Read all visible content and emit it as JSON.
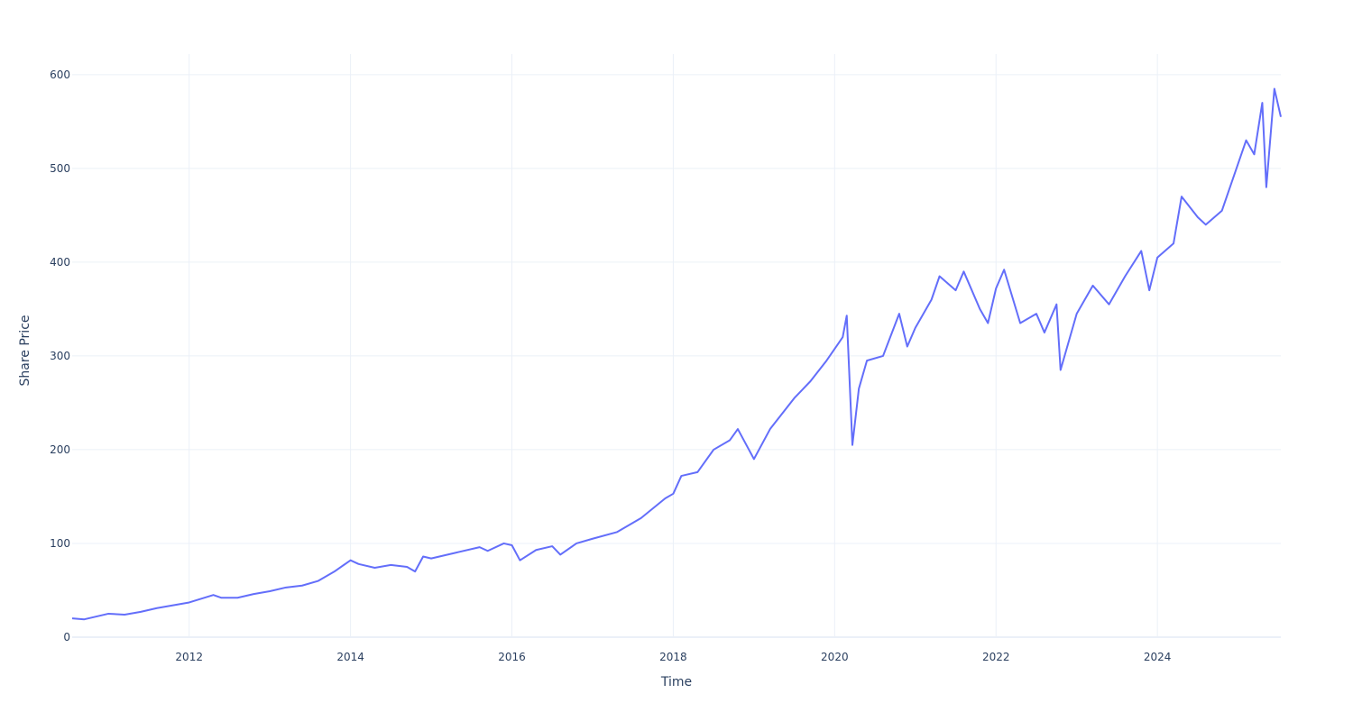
{
  "chart_data": {
    "type": "line",
    "title": "",
    "xlabel": "Time",
    "ylabel": "Share Price",
    "xlim": [
      2010.55,
      2025.53
    ],
    "ylim": [
      -1,
      622
    ],
    "x_ticks": [
      2012,
      2014,
      2016,
      2018,
      2020,
      2022,
      2024
    ],
    "x_tick_labels": [
      "2012",
      "2014",
      "2016",
      "2018",
      "2020",
      "2022",
      "2024"
    ],
    "y_ticks": [
      0,
      100,
      200,
      300,
      400,
      500,
      600
    ],
    "y_tick_labels": [
      "0",
      "100",
      "200",
      "300",
      "400",
      "500",
      "600"
    ],
    "grid": true,
    "legend": "none",
    "series": [
      {
        "color": "#636efa",
        "x": [
          2010.55,
          2010.7,
          2010.85,
          2011.0,
          2011.2,
          2011.4,
          2011.6,
          2011.8,
          2012.0,
          2012.15,
          2012.3,
          2012.4,
          2012.6,
          2012.8,
          2013.0,
          2013.2,
          2013.4,
          2013.6,
          2013.8,
          2014.0,
          2014.1,
          2014.3,
          2014.5,
          2014.7,
          2014.8,
          2014.9,
          2015.0,
          2015.3,
          2015.6,
          2015.7,
          2015.9,
          2016.0,
          2016.1,
          2016.3,
          2016.5,
          2016.6,
          2016.8,
          2017.0,
          2017.3,
          2017.6,
          2017.9,
          2018.0,
          2018.1,
          2018.3,
          2018.5,
          2018.7,
          2018.8,
          2019.0,
          2019.2,
          2019.5,
          2019.7,
          2019.9,
          2020.1,
          2020.15,
          2020.22,
          2020.3,
          2020.4,
          2020.6,
          2020.8,
          2020.9,
          2021.0,
          2021.2,
          2021.3,
          2021.5,
          2021.6,
          2021.8,
          2021.9,
          2022.0,
          2022.1,
          2022.3,
          2022.5,
          2022.6,
          2022.75,
          2022.8,
          2023.0,
          2023.2,
          2023.4,
          2023.6,
          2023.8,
          2023.9,
          2024.0,
          2024.2,
          2024.3,
          2024.5,
          2024.6,
          2024.8,
          2025.0,
          2025.1,
          2025.2,
          2025.3,
          2025.35,
          2025.45,
          2025.53
        ],
        "values": [
          20,
          19,
          22,
          25,
          24,
          27,
          31,
          34,
          37,
          41,
          45,
          42,
          42,
          46,
          49,
          53,
          55,
          60,
          70,
          82,
          78,
          74,
          77,
          75,
          70,
          86,
          84,
          90,
          96,
          92,
          100,
          98,
          82,
          93,
          97,
          88,
          100,
          105,
          112,
          127,
          148,
          153,
          172,
          176,
          200,
          210,
          222,
          190,
          222,
          255,
          273,
          295,
          320,
          343,
          205,
          265,
          295,
          300,
          345,
          310,
          330,
          360,
          385,
          370,
          390,
          350,
          335,
          372,
          392,
          335,
          345,
          325,
          355,
          285,
          345,
          375,
          355,
          385,
          412,
          370,
          405,
          420,
          470,
          448,
          440,
          455,
          505,
          530,
          515,
          570,
          480,
          585,
          555
        ]
      }
    ]
  }
}
